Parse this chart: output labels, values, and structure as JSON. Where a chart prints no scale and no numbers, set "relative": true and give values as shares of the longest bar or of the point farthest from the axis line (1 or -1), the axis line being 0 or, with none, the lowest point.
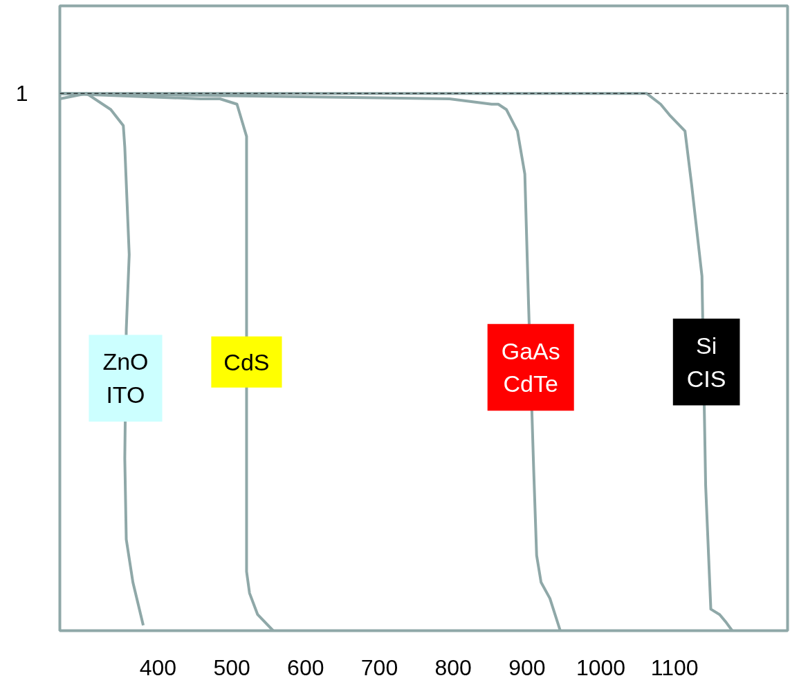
{
  "chart_data": {
    "type": "line",
    "relative": true,
    "color": "#8fa8a8",
    "xlim": [
      267,
      1253
    ],
    "xticks": [
      400,
      500,
      600,
      700,
      800,
      900,
      1000,
      1100
    ],
    "series": [
      {
        "color": "#8fa8a8",
        "x": [
          267,
          303,
          336,
          353,
          355,
          361,
          357,
          355,
          357,
          366,
          380
        ],
        "values": [
          0.99,
          1,
          0.97,
          0.94,
          0.9,
          0.7,
          0.56,
          0.32,
          0.17,
          0.09,
          0.01
        ]
      },
      {
        "color": "#8fa8a8",
        "x": [
          267,
          458,
          484,
          507,
          520,
          520,
          524,
          535,
          556
        ],
        "values": [
          1,
          0.99,
          0.99,
          0.98,
          0.92,
          0.11,
          0.07,
          0.03,
          0
        ]
      },
      {
        "color": "#8fa8a8",
        "x": [
          267,
          795,
          852,
          861,
          872,
          887,
          897,
          902,
          909,
          913,
          919,
          931,
          945
        ],
        "values": [
          1,
          0.99,
          0.98,
          0.98,
          0.97,
          0.93,
          0.85,
          0.61,
          0.3,
          0.14,
          0.09,
          0.06,
          0
        ]
      },
      {
        "color": "#8fa8a8",
        "x": [
          267,
          1062,
          1081,
          1093,
          1114,
          1123,
          1137,
          1142,
          1149,
          1161,
          1170,
          1178
        ],
        "values": [
          1,
          1,
          0.98,
          0.96,
          0.93,
          0.83,
          0.66,
          0.27,
          0.04,
          0.03,
          0.015,
          0
        ]
      }
    ],
    "annotations": [
      {
        "text": "ZnO\nITO",
        "x": 356,
        "y": 0.47
      },
      {
        "text": "CdS",
        "x": 520,
        "y": 0.5
      },
      {
        "text": "GaAs\nCdTe",
        "x": 905,
        "y": 0.49
      },
      {
        "text": "Si\nCIS",
        "x": 1143,
        "y": 0.5
      }
    ],
    "ref_lines": [
      {
        "axis": "y",
        "value": 1,
        "label": "1",
        "line_style": "dashed",
        "color": "#000000"
      }
    ],
    "grid": false,
    "marker": "none",
    "line_style": "solid"
  }
}
